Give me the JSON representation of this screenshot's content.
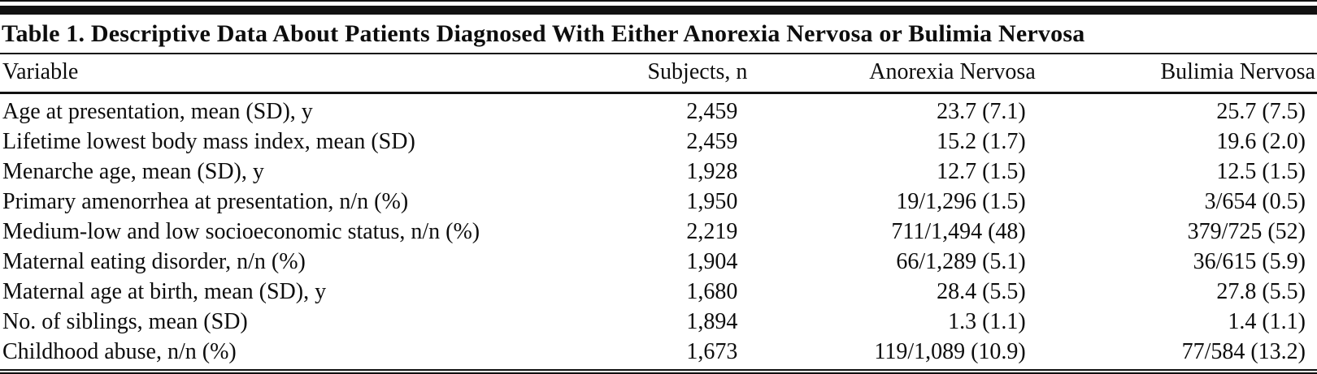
{
  "table": {
    "title": "Table 1. Descriptive Data About Patients Diagnosed With Either Anorexia Nervosa or Bulimia Nervosa",
    "columns": [
      "Variable",
      "Subjects, n",
      "Anorexia Nervosa",
      "Bulimia Nervosa"
    ],
    "rows": [
      [
        "Age at presentation, mean (SD), y",
        "2,459",
        "23.7 (7.1)",
        "25.7 (7.5)"
      ],
      [
        "Lifetime lowest body mass index, mean (SD)",
        "2,459",
        "15.2 (1.7)",
        "19.6 (2.0)"
      ],
      [
        "Menarche age, mean (SD), y",
        "1,928",
        "12.7 (1.5)",
        "12.5 (1.5)"
      ],
      [
        "Primary amenorrhea at presentation, n/n (%)",
        "1,950",
        "19/1,296 (1.5)",
        "3/654 (0.5)"
      ],
      [
        "Medium-low and low socioeconomic status, n/n (%)",
        "2,219",
        "711/1,494 (48)",
        "379/725 (52)"
      ],
      [
        "Maternal eating disorder, n/n (%)",
        "1,904",
        "66/1,289 (5.1)",
        "36/615 (5.9)"
      ],
      [
        "Maternal age at birth, mean (SD), y",
        "1,680",
        "28.4 (5.5)",
        "27.8 (5.5)"
      ],
      [
        "No. of siblings, mean (SD)",
        "1,894",
        "1.3 (1.1)",
        "1.4 (1.1)"
      ],
      [
        "Childhood abuse, n/n (%)",
        "1,673",
        "119/1,089 (10.9)",
        "77/584 (13.2)"
      ]
    ],
    "colors": {
      "text": "#0d0d0d",
      "rule": "#111111",
      "background": "#ffffff"
    }
  }
}
